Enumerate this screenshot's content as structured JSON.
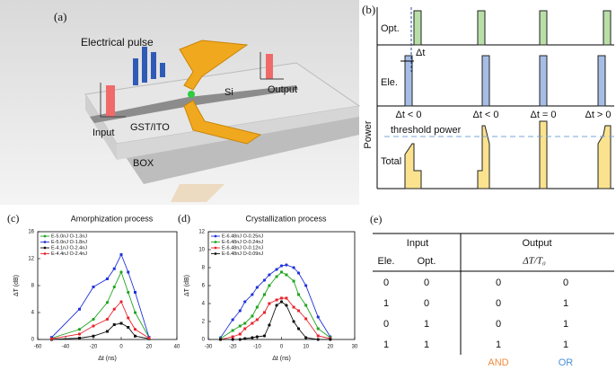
{
  "panel_a": {
    "label": "(a)",
    "electrical_pulse": "Electrical pulse",
    "input": "Input",
    "output": "Output",
    "si": "Si",
    "gst_ito": "GST/ITO",
    "box": "BOX"
  },
  "panel_b": {
    "label": "(b)",
    "rows": [
      "Opt.",
      "Ele.",
      "Total"
    ],
    "y_label": "Power",
    "delta_t": "Δt",
    "cases": [
      "Δt < 0",
      "Δt < 0",
      "Δt = 0",
      "Δt > 0"
    ],
    "threshold": "threshold power"
  },
  "chart_data": [
    {
      "type": "line",
      "panel_label": "(c)",
      "title": "Amorphization process",
      "x_label": "Δt (ns)",
      "y_label": "ΔT (dB)",
      "xlim": [
        -60,
        40
      ],
      "xticks": [
        -60,
        -40,
        -20,
        0,
        20,
        40
      ],
      "ylim": [
        0,
        16
      ],
      "yticks": [
        0,
        4,
        8,
        12,
        16
      ],
      "x": [
        -50,
        -30,
        -20,
        -10,
        -5,
        0,
        5,
        10,
        20
      ],
      "series": [
        {
          "name": "E-5.0nJ O-1.3nJ",
          "color": "#1fa51f",
          "values": [
            0.2,
            1.5,
            3,
            5.5,
            7.8,
            10,
            7,
            4,
            0.3
          ]
        },
        {
          "name": "E-5.0nJ O-1.8nJ",
          "color": "#2233d8",
          "values": [
            0.3,
            4.5,
            7.8,
            9,
            10.5,
            12.6,
            10,
            7,
            0.3
          ]
        },
        {
          "name": "E-4.1nJ O-2.4nJ",
          "color": "#111111",
          "values": [
            0,
            0.2,
            0.5,
            1.2,
            2.2,
            2.4,
            1.8,
            0.5,
            0.1
          ]
        },
        {
          "name": "E-4.4nJ O-2.4nJ",
          "color": "#e8242c",
          "values": [
            0.1,
            0.8,
            2,
            3,
            4.5,
            5.6,
            3.2,
            1.5,
            0.2
          ]
        }
      ]
    },
    {
      "type": "line",
      "panel_label": "(d)",
      "title": "Crystallization process",
      "x_label": "Δt (ns)",
      "y_label": "ΔT (dB)",
      "xlim": [
        -30,
        30
      ],
      "xticks": [
        -30,
        -20,
        -10,
        0,
        10,
        20,
        30
      ],
      "ylim": [
        0,
        12
      ],
      "yticks": [
        0,
        2,
        4,
        6,
        8,
        10,
        12
      ],
      "x": [
        -25,
        -20,
        -17,
        -15,
        -12,
        -10,
        -7,
        -5,
        -2,
        0,
        2,
        5,
        7,
        10,
        15,
        20
      ],
      "series": [
        {
          "name": "E-6.48nJ O-0.25nJ",
          "color": "#2233d8",
          "values": [
            0.2,
            2.2,
            3.2,
            4.2,
            5,
            5.8,
            6.6,
            7.2,
            7.8,
            8.2,
            8.3,
            8,
            7.4,
            6,
            2.5,
            0.3
          ]
        },
        {
          "name": "E-6.48nJ O-0.24nJ",
          "color": "#1fa51f",
          "values": [
            0.1,
            1,
            1.5,
            1.8,
            2.6,
            3.6,
            5,
            6,
            7,
            7.5,
            7.2,
            6.5,
            5,
            3.8,
            1.2,
            0.2
          ]
        },
        {
          "name": "E-6.48nJ O-0.12nJ",
          "color": "#e8242c",
          "values": [
            0,
            0.3,
            0.6,
            1.2,
            1.8,
            2.2,
            3,
            4,
            4.4,
            4.6,
            4.6,
            3.6,
            3.2,
            2.3,
            0.4,
            0.1
          ]
        },
        {
          "name": "E-6.48nJ O-0.09nJ",
          "color": "#111111",
          "values": [
            0,
            0,
            0,
            0.1,
            0.2,
            0.3,
            0.4,
            1.6,
            3.8,
            4.2,
            3.8,
            2,
            1.2,
            0.2,
            0,
            0
          ]
        }
      ]
    }
  ],
  "panel_e": {
    "label": "(e)",
    "header": [
      "Input",
      "Output"
    ],
    "columns": [
      "Ele.",
      "Opt.",
      "ΔT/T₀"
    ],
    "rows": [
      [
        0,
        0,
        0,
        0
      ],
      [
        1,
        0,
        0,
        1
      ],
      [
        0,
        1,
        0,
        1
      ],
      [
        1,
        1,
        1,
        1
      ]
    ],
    "footer": [
      "AND",
      "OR"
    ]
  }
}
